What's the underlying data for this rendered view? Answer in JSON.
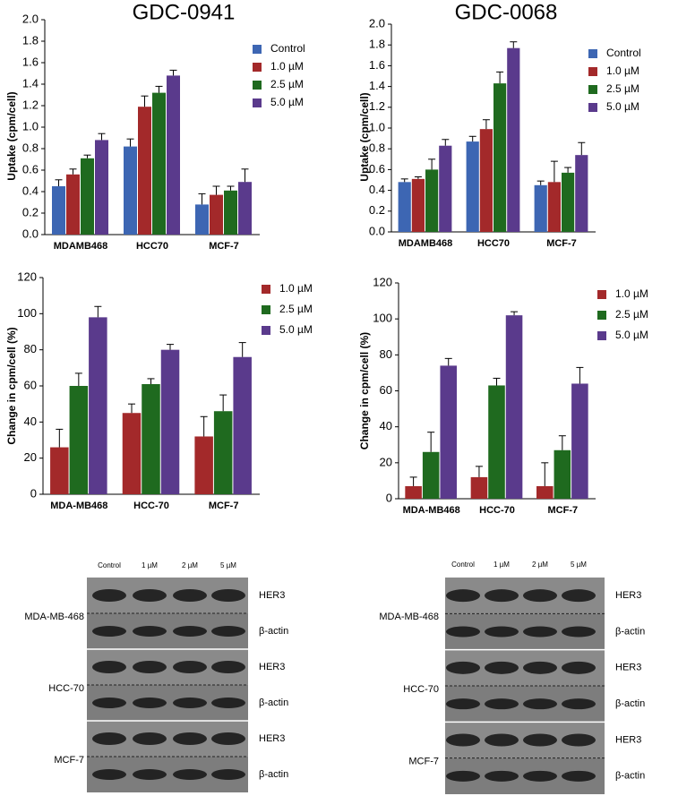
{
  "chart_data": [
    {
      "type": "bar",
      "title": "GDC-0941",
      "y_label": "Uptake (cpm/cell)",
      "categories": [
        "MDAMB468",
        "HCC70",
        "MCF-7"
      ],
      "series": [
        {
          "name": "Control",
          "color": "#3d66b3",
          "values": [
            0.45,
            0.82,
            0.28
          ],
          "errors": [
            0.06,
            0.07,
            0.1
          ]
        },
        {
          "name": "1.0 µM",
          "color": "#a3292a",
          "values": [
            0.56,
            1.19,
            0.37
          ],
          "errors": [
            0.05,
            0.1,
            0.08
          ]
        },
        {
          "name": "2.5 µM",
          "color": "#1f6a1f",
          "values": [
            0.71,
            1.32,
            0.41
          ],
          "errors": [
            0.03,
            0.06,
            0.04
          ]
        },
        {
          "name": "5.0 µM",
          "color": "#5a3a8c",
          "values": [
            0.88,
            1.48,
            0.49
          ],
          "errors": [
            0.06,
            0.05,
            0.12
          ]
        }
      ],
      "ylim": [
        0,
        2
      ],
      "yticks": [
        {
          "value": 0,
          "label": "0.0"
        },
        0.2,
        0.4,
        0.6,
        0.8,
        {
          "value": 1,
          "label": "1.0"
        },
        1.2,
        1.4,
        1.6,
        1.8,
        {
          "value": 2,
          "label": "2.0"
        }
      ],
      "legend": "upper right"
    },
    {
      "type": "bar",
      "title": "GDC-0068",
      "y_label": "Uptake (cpm/cell)",
      "categories": [
        "MDAMB468",
        "HCC70",
        "MCF-7"
      ],
      "series": [
        {
          "name": "Control",
          "color": "#3d66b3",
          "values": [
            0.48,
            0.87,
            0.45
          ],
          "errors": [
            0.03,
            0.05,
            0.04
          ]
        },
        {
          "name": "1.0 µM",
          "color": "#a3292a",
          "values": [
            0.51,
            0.99,
            0.48
          ],
          "errors": [
            0.02,
            0.09,
            0.2
          ]
        },
        {
          "name": "2.5 µM",
          "color": "#1f6a1f",
          "values": [
            0.6,
            1.43,
            0.57
          ],
          "errors": [
            0.1,
            0.11,
            0.05
          ]
        },
        {
          "name": "5.0 µM",
          "color": "#5a3a8c",
          "values": [
            0.83,
            1.77,
            0.74
          ],
          "errors": [
            0.06,
            0.06,
            0.12
          ]
        }
      ],
      "ylim": [
        0,
        2
      ],
      "yticks": [
        {
          "value": 0,
          "label": "0.0"
        },
        0.2,
        0.4,
        0.6,
        0.8,
        {
          "value": 1,
          "label": "1.0"
        },
        1.2,
        1.4,
        1.6,
        1.8,
        {
          "value": 2,
          "label": "2.0"
        }
      ],
      "legend": "upper right"
    },
    {
      "type": "bar",
      "y_label": "Change in cpm/cell (%)",
      "categories": [
        "MDA-MB468",
        "HCC-70",
        "MCF-7"
      ],
      "series": [
        {
          "name": "1.0 µM",
          "color": "#a3292a",
          "values": [
            26,
            45,
            32
          ],
          "errors": [
            10,
            5,
            11
          ]
        },
        {
          "name": "2.5 µM",
          "color": "#1f6a1f",
          "values": [
            60,
            61,
            46
          ],
          "errors": [
            7,
            3,
            9
          ]
        },
        {
          "name": "5.0 µM",
          "color": "#5a3a8c",
          "values": [
            98,
            80,
            76
          ],
          "errors": [
            6,
            3,
            8
          ]
        }
      ],
      "ylim": [
        0,
        120
      ],
      "yticks": [
        0,
        20,
        40,
        60,
        80,
        100,
        120
      ],
      "legend": "upper right"
    },
    {
      "type": "bar",
      "y_label": "Change in cpm/cell (%)",
      "categories": [
        "MDA-MB468",
        "HCC-70",
        "MCF-7"
      ],
      "series": [
        {
          "name": "1.0 µM",
          "color": "#a3292a",
          "values": [
            7,
            12,
            7
          ],
          "errors": [
            5,
            6,
            13
          ]
        },
        {
          "name": "2.5 µM",
          "color": "#1f6a1f",
          "values": [
            26,
            63,
            27
          ],
          "errors": [
            11,
            4,
            8
          ]
        },
        {
          "name": "5.0 µM",
          "color": "#5a3a8c",
          "values": [
            74,
            102,
            64
          ],
          "errors": [
            4,
            2,
            9
          ]
        }
      ],
      "ylim": [
        0,
        120
      ],
      "yticks": [
        0,
        20,
        40,
        60,
        80,
        100,
        120
      ],
      "legend": "upper right"
    }
  ],
  "blots": [
    {
      "lanes": [
        "Control",
        "1 µM",
        "2 µM",
        "5 µM"
      ],
      "cell_lines": [
        "MDA-MB-468",
        "HCC-70",
        "MCF-7"
      ],
      "proteins": [
        "HER3",
        "β-actin"
      ]
    },
    {
      "lanes": [
        "Control",
        "1 µM",
        "2 µM",
        "5 µM"
      ],
      "cell_lines": [
        "MDA-MB-468",
        "HCC-70",
        "MCF-7"
      ],
      "proteins": [
        "HER3",
        "β-actin"
      ]
    }
  ]
}
